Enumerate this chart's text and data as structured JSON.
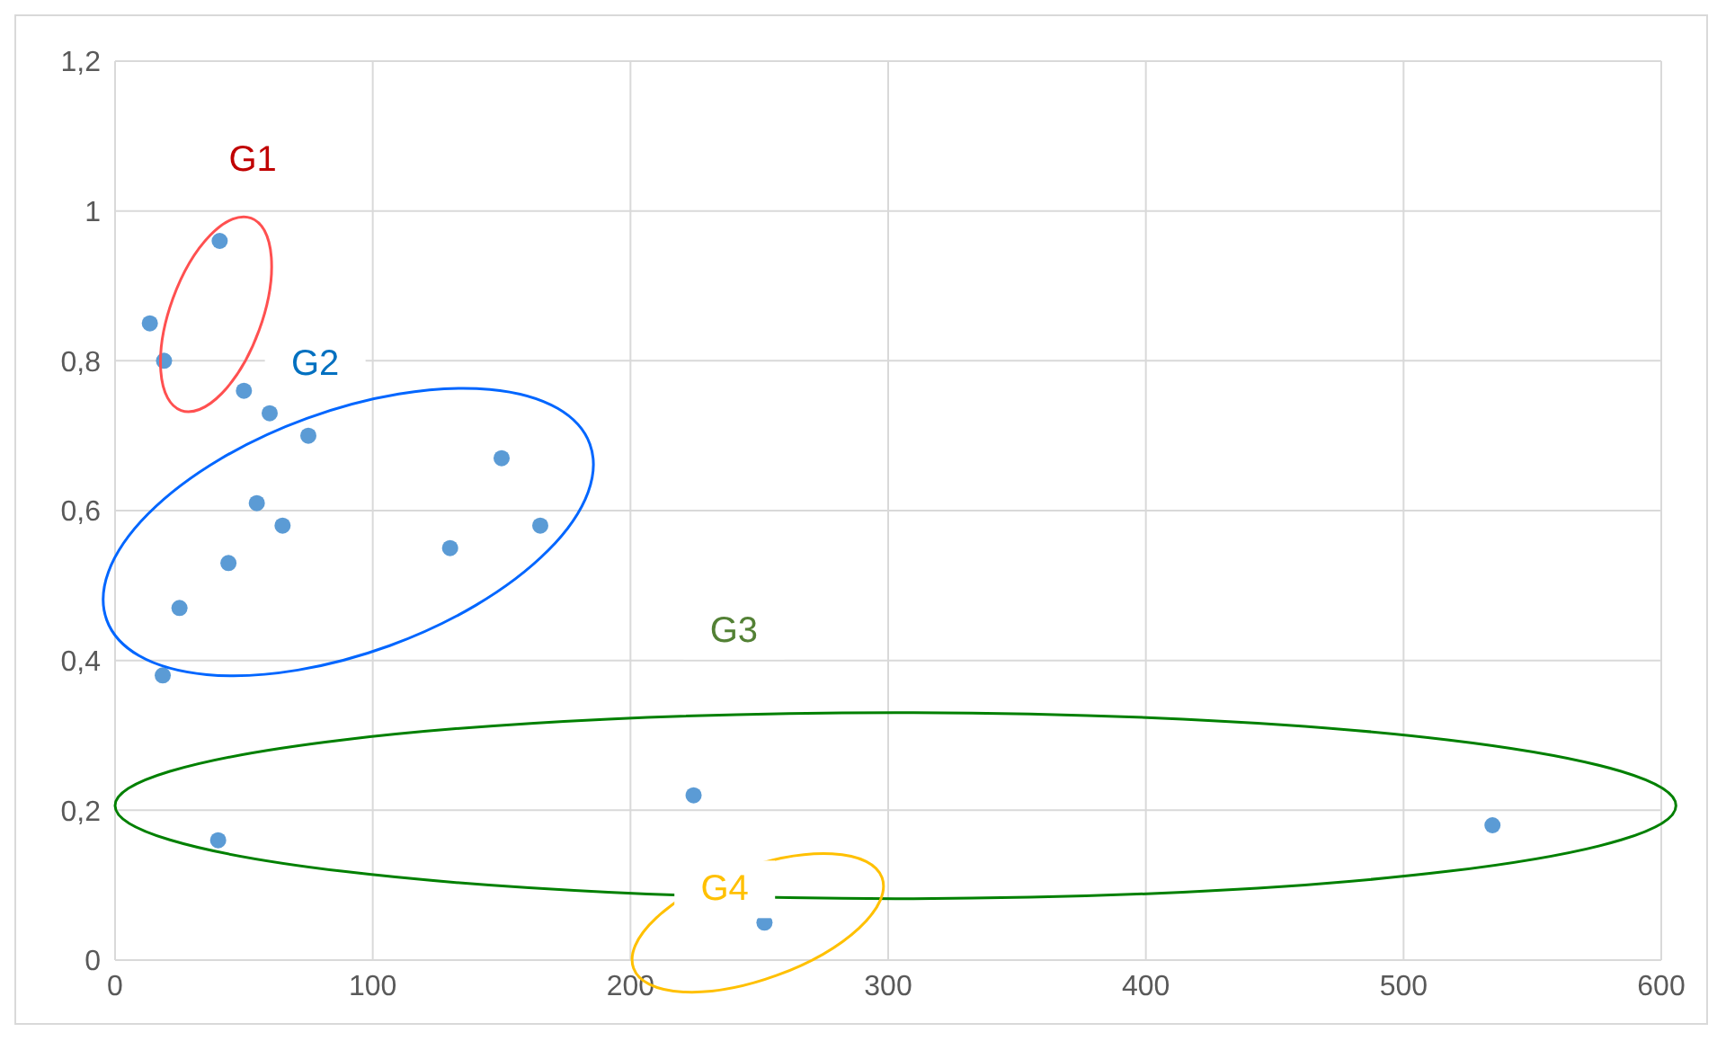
{
  "chart_data": {
    "type": "scatter",
    "x": [
      40.6,
      13.5,
      19,
      50,
      60,
      75,
      150,
      55,
      65,
      165,
      130,
      44,
      25,
      18.5,
      224.5,
      40,
      252,
      534.5
    ],
    "series": [
      {
        "color": "#5b9bd5",
        "values": [
          0.96,
          0.85,
          0.8,
          0.76,
          0.73,
          0.7,
          0.67,
          0.61,
          0.58,
          0.58,
          0.55,
          0.53,
          0.47,
          0.38,
          0.22,
          0.16,
          0.05,
          0.18
        ]
      }
    ],
    "xlim": [
      0,
      600
    ],
    "xticks": [
      0,
      100,
      200,
      300,
      400,
      500,
      600
    ],
    "ylim": [
      0,
      1.2
    ],
    "yticks": [
      0,
      {
        "value": 0.2,
        "label": "0,2"
      },
      {
        "value": 0.4,
        "label": "0,4"
      },
      {
        "value": 0.6,
        "label": "0,6"
      },
      {
        "value": 0.8,
        "label": "0,8"
      },
      1,
      {
        "value": 1.2,
        "label": "1,2"
      }
    ],
    "grid": true,
    "legend": false,
    "marker": "circle",
    "annotations": [
      "G1",
      "G2",
      "G3",
      "G4"
    ]
  }
}
